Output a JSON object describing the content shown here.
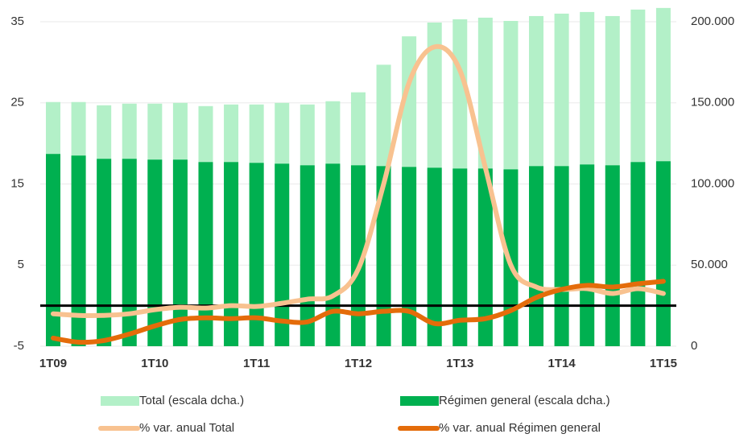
{
  "chart_data": {
    "type": "combo",
    "categories": [
      "1T09",
      null,
      null,
      null,
      "1T10",
      null,
      null,
      null,
      "1T11",
      null,
      null,
      null,
      "1T12",
      null,
      null,
      null,
      "1T13",
      null,
      null,
      null,
      "1T14",
      null,
      null,
      null,
      "1T15"
    ],
    "series": [
      {
        "name": "Total (escala dcha.)",
        "type": "bar",
        "axis": "y2",
        "color": "#b3f0c8",
        "values": [
          150500,
          150500,
          148500,
          149500,
          149500,
          150000,
          148000,
          149000,
          149000,
          150000,
          149000,
          151000,
          156500,
          173500,
          191000,
          199500,
          201500,
          202500,
          200500,
          203500,
          205000,
          206000,
          203500,
          207500,
          208500
        ]
      },
      {
        "name": "Régimen general (escala dcha.)",
        "type": "bar",
        "axis": "y2",
        "color": "#00b050",
        "values": [
          118500,
          117500,
          115500,
          115500,
          115000,
          115000,
          113500,
          113500,
          113000,
          112500,
          111500,
          112500,
          111500,
          111000,
          110500,
          110000,
          109500,
          109500,
          109000,
          111000,
          111000,
          112000,
          111500,
          113500,
          114000
        ]
      },
      {
        "name": "% var. anual Total",
        "type": "line",
        "color": "#f8c290",
        "values": [
          -1.0,
          -1.2,
          -1.2,
          -1.0,
          -0.5,
          -0.2,
          -0.3,
          0.0,
          -0.1,
          0.3,
          0.8,
          1.2,
          4.5,
          15,
          27.5,
          31.9,
          29,
          17,
          5,
          2.3,
          2.0,
          2.1,
          1.5,
          2.1,
          1.5
        ]
      },
      {
        "name": "% var. anual Régimen general",
        "type": "line",
        "color": "#e46c0a",
        "values": [
          -4.0,
          -4.5,
          -4.3,
          -3.5,
          -2.5,
          -1.7,
          -1.5,
          -1.6,
          -1.5,
          -1.9,
          -2.0,
          -0.7,
          -1.0,
          -0.7,
          -0.7,
          -2.2,
          -1.8,
          -1.6,
          -0.6,
          1.0,
          2.0,
          2.5,
          2.3,
          2.7,
          3.0
        ]
      }
    ],
    "ylim": [
      -5,
      37
    ],
    "yticks": [
      35,
      25,
      15,
      5,
      -5
    ],
    "y2lim": [
      0,
      210000
    ],
    "y2ticks": [
      {
        "value": 200000,
        "label": "200.000"
      },
      {
        "value": 150000,
        "label": "150.000"
      },
      {
        "value": 100000,
        "label": "100.000"
      },
      {
        "value": 50000,
        "label": "50.000"
      },
      0
    ],
    "grid": true,
    "zero_line": true,
    "legend": "bottom"
  }
}
